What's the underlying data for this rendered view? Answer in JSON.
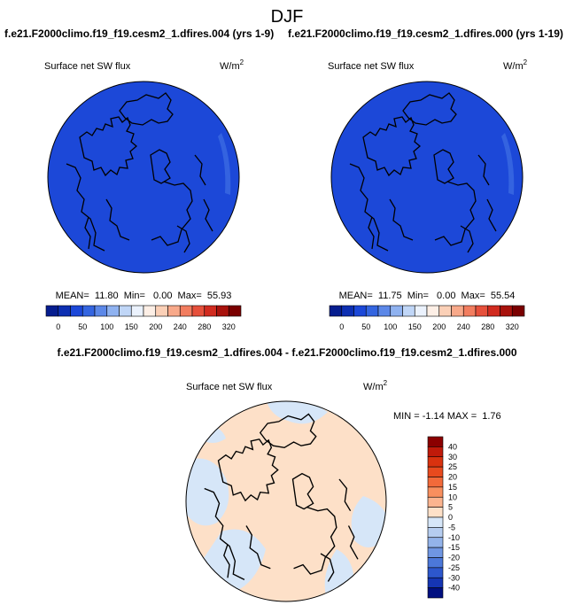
{
  "title": "DJF",
  "panels": [
    {
      "case": "f.e21.F2000climo.f19_f19.cesm2_1.dfires.004 (yrs 1-9)",
      "variable": "Surface net SW flux",
      "units": "W/m",
      "units_exp": "2",
      "stats": "MEAN=  11.80  Min=   0.00  Max=  55.93",
      "colorbar": {
        "labels": [
          0,
          50,
          100,
          150,
          200,
          240,
          280,
          320
        ],
        "colors": [
          "#061d8f",
          "#0d2fb2",
          "#1c48d8",
          "#3465e0",
          "#5c88e8",
          "#8fb2f0",
          "#c0d6f7",
          "#ebf2fd",
          "#fdefe6",
          "#fbd0b7",
          "#f8a98a",
          "#f27d5f",
          "#e6503b",
          "#d12b1f",
          "#a8120c",
          "#7a0000"
        ]
      }
    },
    {
      "case": "f.e21.F2000climo.f19_f19.cesm2_1.dfires.000 (yrs 1-19)",
      "variable": "Surface net SW flux",
      "units": "W/m",
      "units_exp": "2",
      "stats": "MEAN=  11.75  Min=   0.00  Max=  55.54",
      "colorbar": {
        "labels": [
          0,
          50,
          100,
          150,
          200,
          240,
          280,
          320
        ],
        "colors": [
          "#061d8f",
          "#0d2fb2",
          "#1c48d8",
          "#3465e0",
          "#5c88e8",
          "#8fb2f0",
          "#c0d6f7",
          "#ebf2fd",
          "#fdefe6",
          "#fbd0b7",
          "#f8a98a",
          "#f27d5f",
          "#e6503b",
          "#d12b1f",
          "#a8120c",
          "#7a0000"
        ]
      }
    }
  ],
  "difference": {
    "title": "f.e21.F2000climo.f19_f19.cesm2_1.dfires.004 - f.e21.F2000climo.f19_f19.cesm2_1.dfires.000",
    "variable": "Surface net SW flux",
    "units": "W/m",
    "units_exp": "2",
    "stats": "MIN = -1.14 MAX =  1.76",
    "colorbar": {
      "labels": [
        40,
        30,
        25,
        20,
        15,
        10,
        5,
        0,
        -5,
        -10,
        -15,
        -20,
        -25,
        -30,
        -40
      ],
      "colors": [
        "#8b0000",
        "#c01a0a",
        "#d9320f",
        "#e84a1e",
        "#f26a3a",
        "#f88f5e",
        "#fbb48f",
        "#fde0c8",
        "#d6e6f8",
        "#b6cdf0",
        "#93b3ea",
        "#6f96e2",
        "#4c78d9",
        "#2d57cc",
        "#1535b3",
        "#000f80"
      ]
    }
  }
}
